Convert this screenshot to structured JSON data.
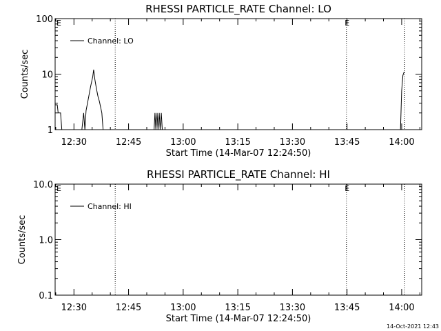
{
  "footer": {
    "timestamp": "14-Oct-2021 12:43"
  },
  "chart_data": [
    {
      "type": "line",
      "title": "RHESSI PARTICLE_RATE Channel: LO",
      "xlabel": "Start Time (14-Mar-07 12:24:50)",
      "ylabel": "Counts/sec",
      "y_scale": "log",
      "ylim": [
        1,
        100
      ],
      "y_ticks": [
        1,
        10,
        100
      ],
      "y_tick_labels": [
        "1",
        "10",
        "100"
      ],
      "xlim": [
        "12:24:50",
        "14:05:30"
      ],
      "x_ticks": [
        "12:30",
        "12:45",
        "13:00",
        "13:15",
        "13:30",
        "13:45",
        "14:00"
      ],
      "grid": false,
      "legend": {
        "position": "top-left",
        "entries": [
          "Channel: LO"
        ]
      },
      "vlines": [
        {
          "x": "12:41:20",
          "style": "dotted",
          "label": ""
        },
        {
          "x": "13:44:50",
          "style": "dotted",
          "label": "E"
        },
        {
          "x": "14:00:50",
          "style": "dotted",
          "label": ""
        }
      ],
      "corner_label": "E",
      "series": [
        {
          "name": "Channel: LO",
          "points": [
            [
              "12:24:50",
              2.8
            ],
            [
              "12:25:25",
              2.8
            ],
            [
              "12:25:40",
              2.0
            ],
            [
              "12:26:20",
              2.0
            ],
            [
              "12:26:40",
              1.0
            ],
            [
              "12:32:10",
              1.0
            ],
            [
              "12:32:40",
              2.0
            ],
            [
              "12:33:00",
              1.0
            ],
            [
              "12:33:20",
              2.2
            ],
            [
              "12:33:55",
              3.5
            ],
            [
              "12:34:35",
              6.0
            ],
            [
              "12:35:10",
              9.0
            ],
            [
              "12:35:25",
              12.0
            ],
            [
              "12:35:45",
              8.0
            ],
            [
              "12:36:10",
              5.5
            ],
            [
              "12:36:35",
              4.0
            ],
            [
              "12:37:00",
              3.2
            ],
            [
              "12:37:40",
              2.0
            ],
            [
              "12:38:00",
              1.0
            ],
            [
              "12:52:00",
              1.0
            ],
            [
              "12:52:15",
              2.0
            ],
            [
              "12:52:30",
              1.0
            ],
            [
              "12:52:50",
              2.0
            ],
            [
              "12:53:05",
              1.0
            ],
            [
              "12:53:25",
              2.0
            ],
            [
              "12:53:40",
              1.0
            ],
            [
              "12:54:00",
              2.0
            ],
            [
              "12:54:15",
              1.0
            ],
            [
              "13:59:40",
              1.0
            ],
            [
              "14:00:00",
              5.0
            ],
            [
              "14:00:20",
              9.5
            ],
            [
              "14:00:40",
              11.0
            ]
          ]
        }
      ]
    },
    {
      "type": "line",
      "title": "RHESSI PARTICLE_RATE Channel: HI",
      "xlabel": "Start Time (14-Mar-07 12:24:50)",
      "ylabel": "Counts/sec",
      "y_scale": "log",
      "ylim": [
        0.1,
        10
      ],
      "y_ticks": [
        0.1,
        1,
        10
      ],
      "y_tick_labels": [
        "0.1",
        "1.0",
        "10.0"
      ],
      "xlim": [
        "12:24:50",
        "14:05:30"
      ],
      "x_ticks": [
        "12:30",
        "12:45",
        "13:00",
        "13:15",
        "13:30",
        "13:45",
        "14:00"
      ],
      "grid": false,
      "legend": {
        "position": "top-left",
        "entries": [
          "Channel: HI"
        ]
      },
      "vlines": [
        {
          "x": "12:41:20",
          "style": "dotted",
          "label": ""
        },
        {
          "x": "13:44:50",
          "style": "dotted",
          "label": "E"
        },
        {
          "x": "14:00:50",
          "style": "dotted",
          "label": ""
        }
      ],
      "corner_label": "E",
      "series": [
        {
          "name": "Channel: HI",
          "points": []
        }
      ]
    }
  ]
}
